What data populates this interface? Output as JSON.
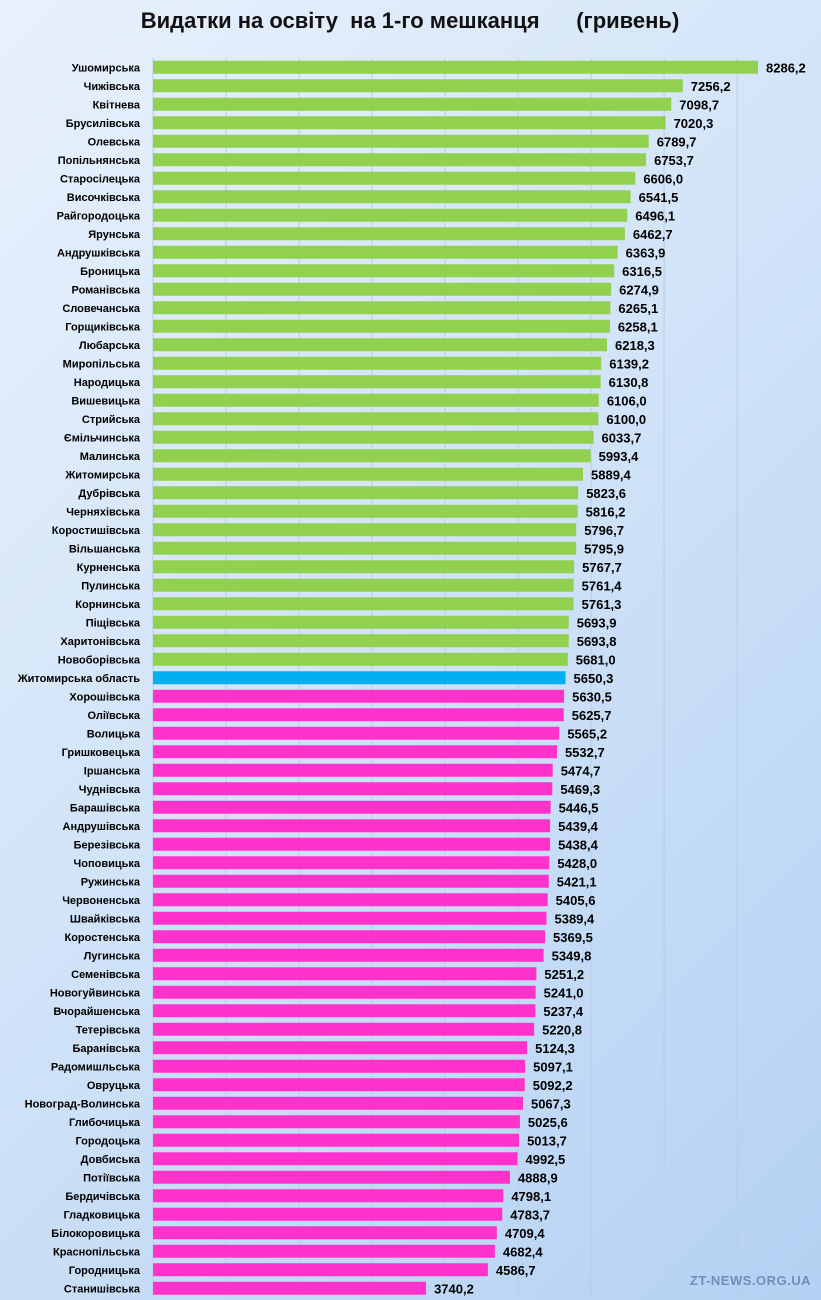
{
  "chart_data": {
    "type": "bar",
    "orientation": "horizontal",
    "title": "Видатки на освіту  на 1-го мешканця      (гривень)",
    "xlim": [
      0,
      8500
    ],
    "grid": true,
    "colors": {
      "above_average": "#92d050",
      "average": "#00b0f0",
      "below_average": "#ff33cc"
    },
    "categories": [
      "Ушомирська",
      "Чижівська",
      "Квітнева",
      "Брусилівська",
      "Олевська",
      "Попільнянська",
      "Старосілецька",
      "Височківська",
      "Райгородоцька",
      "Ярунська",
      "Андрушківська",
      "Броницька",
      "Романівська",
      "Словечанська",
      "Горщиківська",
      "Любарська",
      "Миропільська",
      "Народицька",
      "Вишевицька",
      "Стрийська",
      "Ємільчинська",
      "Малинська",
      "Житомирська",
      "Дубрівська",
      "Черняхівська",
      "Коростишівська",
      "Вільшанська",
      "Курненська",
      "Пулинська",
      "Корнинська",
      "Піщівська",
      "Харитонівська",
      "Новоборівська",
      "Житомирська область",
      "Хорошівська",
      "Оліївська",
      "Волицька",
      "Гришковецька",
      "Іршанська",
      "Чуднівська",
      "Барашівська",
      "Андрушівська",
      "Березівська",
      "Чоповицька",
      "Ружинська",
      "Червоненська",
      "Швайківська",
      "Коростенська",
      "Лугинська",
      "Семенівська",
      "Новогуйвинська",
      "Вчорайшенська",
      "Тетерівська",
      "Баранівська",
      "Радомишльська",
      "Овруцька",
      "Новоград-Волинська",
      "Глибочицька",
      "Городоцька",
      "Довбиська",
      "Потіївська",
      "Бердичівська",
      "Гладковицька",
      "Білокоровицька",
      "Краснопільська",
      "Городницька",
      "Станишівська"
    ],
    "values": [
      8286.2,
      7256.2,
      7098.7,
      7020.3,
      6789.7,
      6753.7,
      6606.0,
      6541.5,
      6496.1,
      6462.7,
      6363.9,
      6316.5,
      6274.9,
      6265.1,
      6258.1,
      6218.3,
      6139.2,
      6130.8,
      6106.0,
      6100.0,
      6033.7,
      5993.4,
      5889.4,
      5823.6,
      5816.2,
      5796.7,
      5795.9,
      5767.7,
      5761.4,
      5761.3,
      5693.9,
      5693.8,
      5681.0,
      5650.3,
      5630.5,
      5625.7,
      5565.2,
      5532.7,
      5474.7,
      5469.3,
      5446.5,
      5439.4,
      5438.4,
      5428.0,
      5421.1,
      5405.6,
      5389.4,
      5369.5,
      5349.8,
      5251.2,
      5241.0,
      5237.4,
      5220.8,
      5124.3,
      5097.1,
      5092.2,
      5067.3,
      5025.6,
      5013.7,
      4992.5,
      4888.9,
      4798.1,
      4783.7,
      4709.4,
      4682.4,
      4586.7,
      3740.2
    ],
    "value_labels": [
      "8286,2",
      "7256,2",
      "7098,7",
      "7020,3",
      "6789,7",
      "6753,7",
      "6606,0",
      "6541,5",
      "6496,1",
      "6462,7",
      "6363,9",
      "6316,5",
      "6274,9",
      "6265,1",
      "6258,1",
      "6218,3",
      "6139,2",
      "6130,8",
      "6106,0",
      "6100,0",
      "6033,7",
      "5993,4",
      "5889,4",
      "5823,6",
      "5816,2",
      "5796,7",
      "5795,9",
      "5767,7",
      "5761,4",
      "5761,3",
      "5693,9",
      "5693,8",
      "5681,0",
      "5650,3",
      "5630,5",
      "5625,7",
      "5565,2",
      "5532,7",
      "5474,7",
      "5469,3",
      "5446,5",
      "5439,4",
      "5438,4",
      "5428,0",
      "5421,1",
      "5405,6",
      "5389,4",
      "5369,5",
      "5349,8",
      "5251,2",
      "5241,0",
      "5237,4",
      "5220,8",
      "5124,3",
      "5097,1",
      "5092,2",
      "5067,3",
      "5025,6",
      "5013,7",
      "4992,5",
      "4888,9",
      "4798,1",
      "4783,7",
      "4709,4",
      "4682,4",
      "4586,7",
      "3740,2"
    ],
    "average_category": "Житомирська область"
  },
  "watermark": "ZT-NEWS.ORG.UA"
}
